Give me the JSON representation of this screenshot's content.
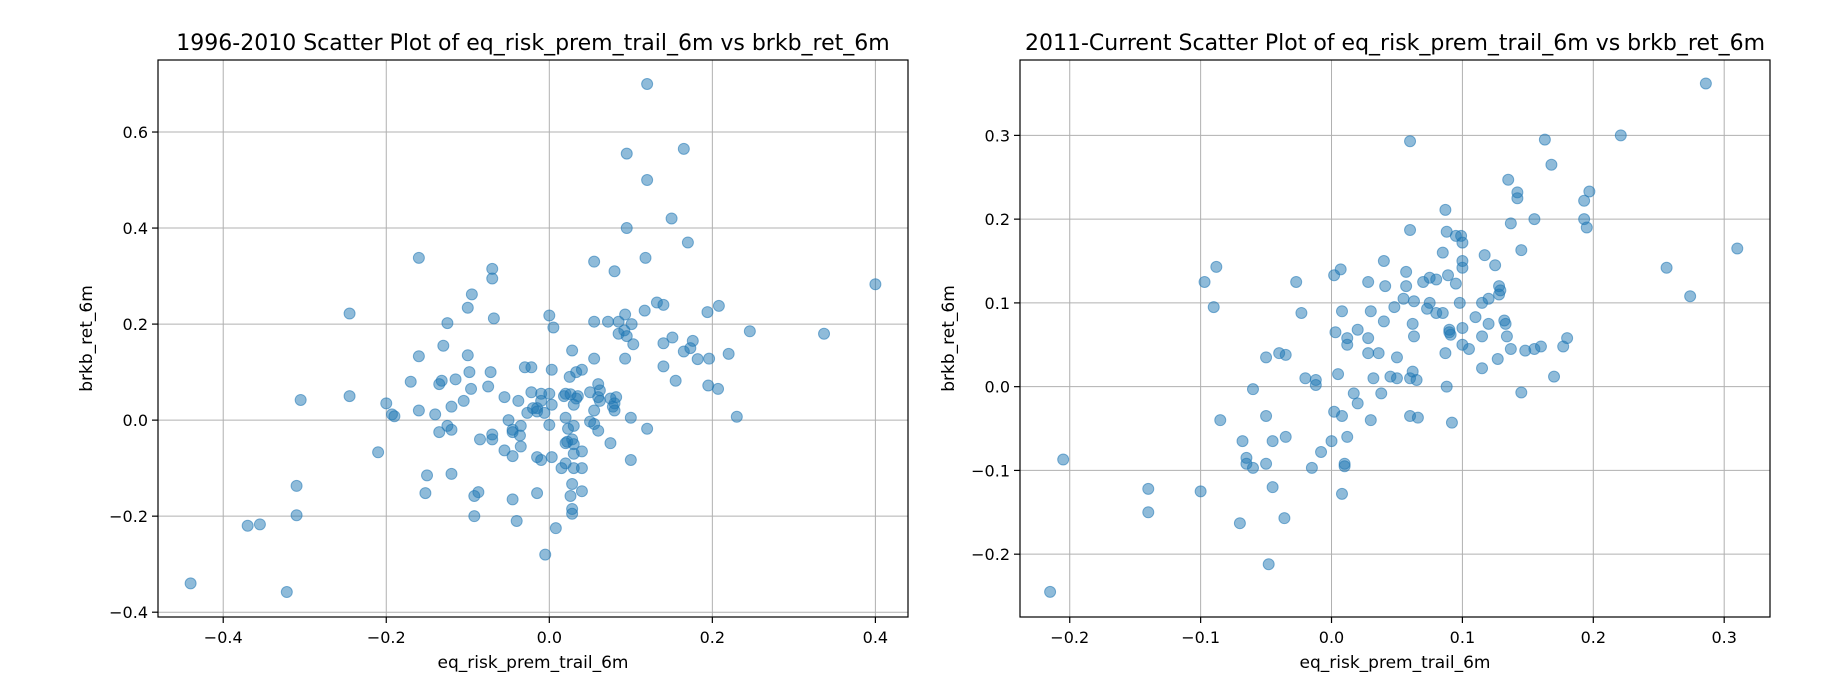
{
  "chart_data": [
    {
      "type": "scatter",
      "title": "1996-2010 Scatter Plot of eq_risk_prem_trail_6m vs brkb_ret_6m",
      "xlabel": "eq_risk_prem_trail_6m",
      "ylabel": "brkb_ret_6m",
      "xlim": [
        -0.48,
        0.44
      ],
      "ylim": [
        -0.41,
        0.75
      ],
      "xticks": [
        -0.4,
        -0.2,
        0.0,
        0.2,
        0.4
      ],
      "xtick_labels": [
        "−0.4",
        "−0.2",
        "0.0",
        "0.2",
        "0.4"
      ],
      "yticks": [
        -0.4,
        -0.2,
        0.0,
        0.2,
        0.4,
        0.6
      ],
      "ytick_labels": [
        "−0.4",
        "−0.2",
        "0.0",
        "0.2",
        "0.4",
        "0.6"
      ],
      "grid": true,
      "color": "#1f77b4",
      "points": [
        [
          0.12,
          0.7
        ],
        [
          0.165,
          0.565
        ],
        [
          0.095,
          0.555
        ],
        [
          0.12,
          0.5
        ],
        [
          0.15,
          0.42
        ],
        [
          0.095,
          0.4
        ],
        [
          0.17,
          0.37
        ],
        [
          0.055,
          0.33
        ],
        [
          0.118,
          0.338
        ],
        [
          0.08,
          0.31
        ],
        [
          -0.16,
          0.338
        ],
        [
          -0.07,
          0.315
        ],
        [
          -0.07,
          0.295
        ],
        [
          0.4,
          0.283
        ],
        [
          -0.095,
          0.262
        ],
        [
          0.132,
          0.245
        ],
        [
          0.14,
          0.24
        ],
        [
          -0.245,
          0.222
        ],
        [
          0.0,
          0.218
        ],
        [
          0.208,
          0.238
        ],
        [
          -0.1,
          0.234
        ],
        [
          0.117,
          0.228
        ],
        [
          0.194,
          0.225
        ],
        [
          0.093,
          0.22
        ],
        [
          -0.068,
          0.212
        ],
        [
          0.055,
          0.205
        ],
        [
          0.072,
          0.205
        ],
        [
          0.085,
          0.205
        ],
        [
          -0.125,
          0.202
        ],
        [
          0.101,
          0.2
        ],
        [
          0.005,
          0.193
        ],
        [
          0.092,
          0.187
        ],
        [
          0.246,
          0.185
        ],
        [
          0.337,
          0.18
        ],
        [
          0.085,
          0.18
        ],
        [
          0.095,
          0.175
        ],
        [
          0.151,
          0.172
        ],
        [
          0.176,
          0.165
        ],
        [
          0.14,
          0.16
        ],
        [
          0.103,
          0.158
        ],
        [
          0.165,
          0.143
        ],
        [
          -0.13,
          0.155
        ],
        [
          0.173,
          0.15
        ],
        [
          0.028,
          0.145
        ],
        [
          0.22,
          0.138
        ],
        [
          -0.16,
          0.133
        ],
        [
          0.196,
          0.128
        ],
        [
          0.182,
          0.127
        ],
        [
          0.093,
          0.128
        ],
        [
          0.055,
          0.128
        ],
        [
          -0.1,
          0.135
        ],
        [
          0.14,
          0.112
        ],
        [
          -0.03,
          0.11
        ],
        [
          -0.022,
          0.11
        ],
        [
          0.003,
          0.105
        ],
        [
          0.04,
          0.105
        ],
        [
          -0.098,
          0.1
        ],
        [
          0.033,
          0.1
        ],
        [
          -0.072,
          0.1
        ],
        [
          0.155,
          0.082
        ],
        [
          -0.115,
          0.085
        ],
        [
          -0.132,
          0.082
        ],
        [
          0.025,
          0.09
        ],
        [
          -0.17,
          0.08
        ],
        [
          -0.135,
          0.075
        ],
        [
          0.195,
          0.072
        ],
        [
          0.06,
          0.075
        ],
        [
          -0.075,
          0.07
        ],
        [
          0.207,
          0.065
        ],
        [
          -0.096,
          0.065
        ],
        [
          0.062,
          0.062
        ],
        [
          0.05,
          0.058
        ],
        [
          -0.022,
          0.058
        ],
        [
          -0.01,
          0.055
        ],
        [
          0.0,
          0.055
        ],
        [
          0.02,
          0.055
        ],
        [
          0.026,
          0.054
        ],
        [
          0.018,
          0.05
        ],
        [
          0.035,
          0.05
        ],
        [
          -0.245,
          0.05
        ],
        [
          -0.055,
          0.048
        ],
        [
          0.06,
          0.048
        ],
        [
          0.082,
          0.048
        ],
        [
          0.033,
          0.045
        ],
        [
          -0.01,
          0.04
        ],
        [
          0.075,
          0.045
        ],
        [
          -0.305,
          0.042
        ],
        [
          -0.105,
          0.04
        ],
        [
          -0.038,
          0.04
        ],
        [
          0.062,
          0.04
        ],
        [
          -0.2,
          0.035
        ],
        [
          0.08,
          0.035
        ],
        [
          0.003,
          0.032
        ],
        [
          0.03,
          0.032
        ],
        [
          -0.12,
          0.028
        ],
        [
          0.078,
          0.028
        ],
        [
          -0.015,
          0.025
        ],
        [
          -0.02,
          0.025
        ],
        [
          -0.16,
          0.02
        ],
        [
          0.055,
          0.02
        ],
        [
          0.08,
          0.02
        ],
        [
          -0.015,
          0.018
        ],
        [
          -0.027,
          0.015
        ],
        [
          -0.006,
          0.015
        ],
        [
          -0.193,
          0.012
        ],
        [
          -0.14,
          0.012
        ],
        [
          -0.19,
          0.008
        ],
        [
          0.23,
          0.007
        ],
        [
          0.1,
          0.005
        ],
        [
          0.02,
          0.005
        ],
        [
          -0.05,
          0.0
        ],
        [
          0.05,
          -0.003
        ],
        [
          0.055,
          -0.008
        ],
        [
          0.0,
          -0.01
        ],
        [
          -0.125,
          -0.012
        ],
        [
          -0.035,
          -0.012
        ],
        [
          0.03,
          -0.012
        ],
        [
          -0.12,
          -0.02
        ],
        [
          0.023,
          -0.018
        ],
        [
          -0.135,
          -0.025
        ],
        [
          0.12,
          -0.018
        ],
        [
          -0.045,
          -0.02
        ],
        [
          -0.045,
          -0.025
        ],
        [
          0.06,
          -0.022
        ],
        [
          -0.07,
          -0.03
        ],
        [
          -0.036,
          -0.032
        ],
        [
          -0.07,
          -0.04
        ],
        [
          0.028,
          -0.04
        ],
        [
          -0.085,
          -0.04
        ],
        [
          0.022,
          -0.045
        ],
        [
          0.075,
          -0.048
        ],
        [
          0.02,
          -0.048
        ],
        [
          0.03,
          -0.05
        ],
        [
          -0.035,
          -0.055
        ],
        [
          -0.055,
          -0.063
        ],
        [
          0.04,
          -0.065
        ],
        [
          0.03,
          -0.07
        ],
        [
          -0.21,
          -0.067
        ],
        [
          -0.045,
          -0.075
        ],
        [
          -0.015,
          -0.077
        ],
        [
          0.003,
          -0.077
        ],
        [
          0.1,
          -0.083
        ],
        [
          -0.01,
          -0.083
        ],
        [
          0.02,
          -0.09
        ],
        [
          0.04,
          -0.1
        ],
        [
          0.015,
          -0.1
        ],
        [
          0.03,
          -0.1
        ],
        [
          -0.15,
          -0.115
        ],
        [
          -0.12,
          -0.112
        ],
        [
          0.028,
          -0.133
        ],
        [
          0.04,
          -0.148
        ],
        [
          -0.015,
          -0.152
        ],
        [
          -0.087,
          -0.15
        ],
        [
          -0.152,
          -0.152
        ],
        [
          -0.092,
          -0.158
        ],
        [
          0.026,
          -0.158
        ],
        [
          -0.045,
          -0.165
        ],
        [
          -0.31,
          -0.137
        ],
        [
          0.028,
          -0.185
        ],
        [
          0.028,
          -0.195
        ],
        [
          -0.092,
          -0.2
        ],
        [
          -0.31,
          -0.198
        ],
        [
          -0.04,
          -0.21
        ],
        [
          -0.355,
          -0.217
        ],
        [
          -0.37,
          -0.22
        ],
        [
          0.008,
          -0.225
        ],
        [
          -0.005,
          -0.28
        ],
        [
          -0.44,
          -0.34
        ],
        [
          -0.322,
          -0.358
        ]
      ]
    },
    {
      "type": "scatter",
      "title": "2011-Current Scatter Plot of eq_risk_prem_trail_6m vs brkb_ret_6m",
      "xlabel": "eq_risk_prem_trail_6m",
      "ylabel": "brkb_ret_6m",
      "xlim": [
        -0.238,
        0.335
      ],
      "ylim": [
        -0.275,
        0.39
      ],
      "xticks": [
        -0.2,
        -0.1,
        0.0,
        0.1,
        0.2,
        0.3
      ],
      "xtick_labels": [
        "−0.2",
        "−0.1",
        "0.0",
        "0.1",
        "0.2",
        "0.3"
      ],
      "yticks": [
        -0.2,
        -0.1,
        0.0,
        0.1,
        0.2,
        0.3
      ],
      "ytick_labels": [
        "−0.2",
        "−0.1",
        "0.0",
        "0.1",
        "0.2",
        "0.3"
      ],
      "grid": true,
      "color": "#1f77b4",
      "points": [
        [
          0.286,
          0.362
        ],
        [
          0.06,
          0.293
        ],
        [
          0.163,
          0.295
        ],
        [
          0.221,
          0.3
        ],
        [
          0.168,
          0.265
        ],
        [
          0.135,
          0.247
        ],
        [
          0.197,
          0.233
        ],
        [
          0.142,
          0.232
        ],
        [
          0.142,
          0.225
        ],
        [
          0.193,
          0.222
        ],
        [
          0.087,
          0.211
        ],
        [
          0.099,
          0.18
        ],
        [
          0.193,
          0.2
        ],
        [
          0.155,
          0.2
        ],
        [
          0.137,
          0.195
        ],
        [
          0.195,
          0.19
        ],
        [
          0.06,
          0.187
        ],
        [
          0.088,
          0.185
        ],
        [
          0.095,
          0.18
        ],
        [
          0.1,
          0.172
        ],
        [
          0.31,
          0.165
        ],
        [
          0.145,
          0.163
        ],
        [
          0.085,
          0.16
        ],
        [
          0.117,
          0.157
        ],
        [
          0.1,
          0.15
        ],
        [
          0.04,
          0.15
        ],
        [
          0.125,
          0.145
        ],
        [
          0.256,
          0.142
        ],
        [
          -0.088,
          0.143
        ],
        [
          0.1,
          0.142
        ],
        [
          0.007,
          0.14
        ],
        [
          0.057,
          0.137
        ],
        [
          0.075,
          0.13
        ],
        [
          0.002,
          0.133
        ],
        [
          0.08,
          0.128
        ],
        [
          0.089,
          0.133
        ],
        [
          0.128,
          0.12
        ],
        [
          0.095,
          0.123
        ],
        [
          0.07,
          0.125
        ],
        [
          0.028,
          0.125
        ],
        [
          -0.027,
          0.125
        ],
        [
          -0.097,
          0.125
        ],
        [
          0.041,
          0.12
        ],
        [
          0.057,
          0.12
        ],
        [
          0.129,
          0.115
        ],
        [
          0.128,
          0.11
        ],
        [
          0.274,
          0.108
        ],
        [
          0.055,
          0.105
        ],
        [
          0.12,
          0.105
        ],
        [
          0.063,
          0.102
        ],
        [
          0.098,
          0.1
        ],
        [
          0.075,
          0.1
        ],
        [
          0.115,
          0.1
        ],
        [
          -0.09,
          0.095
        ],
        [
          0.048,
          0.095
        ],
        [
          0.073,
          0.093
        ],
        [
          0.03,
          0.09
        ],
        [
          0.008,
          0.09
        ],
        [
          -0.023,
          0.088
        ],
        [
          0.08,
          0.088
        ],
        [
          0.085,
          0.088
        ],
        [
          0.11,
          0.083
        ],
        [
          0.132,
          0.079
        ],
        [
          0.04,
          0.078
        ],
        [
          0.12,
          0.075
        ],
        [
          0.133,
          0.075
        ],
        [
          0.062,
          0.075
        ],
        [
          0.1,
          0.07
        ],
        [
          0.02,
          0.068
        ],
        [
          0.003,
          0.065
        ],
        [
          0.09,
          0.065
        ],
        [
          0.091,
          0.062
        ],
        [
          0.09,
          0.068
        ],
        [
          0.028,
          0.058
        ],
        [
          0.012,
          0.058
        ],
        [
          0.134,
          0.06
        ],
        [
          0.063,
          0.06
        ],
        [
          0.18,
          0.058
        ],
        [
          0.115,
          0.06
        ],
        [
          0.012,
          0.05
        ],
        [
          0.1,
          0.05
        ],
        [
          0.105,
          0.045
        ],
        [
          0.137,
          0.045
        ],
        [
          0.16,
          0.048
        ],
        [
          0.177,
          0.048
        ],
        [
          0.148,
          0.043
        ],
        [
          0.155,
          0.045
        ],
        [
          0.087,
          0.04
        ],
        [
          0.036,
          0.04
        ],
        [
          -0.04,
          0.04
        ],
        [
          -0.035,
          0.038
        ],
        [
          -0.05,
          0.035
        ],
        [
          0.028,
          0.04
        ],
        [
          0.05,
          0.035
        ],
        [
          0.06,
          0.01
        ],
        [
          0.062,
          0.018
        ],
        [
          0.115,
          0.022
        ],
        [
          0.127,
          0.033
        ],
        [
          0.005,
          0.015
        ],
        [
          0.032,
          0.01
        ],
        [
          -0.02,
          0.01
        ],
        [
          -0.012,
          0.008
        ],
        [
          0.045,
          0.012
        ],
        [
          0.05,
          0.01
        ],
        [
          0.065,
          0.008
        ],
        [
          0.17,
          0.012
        ],
        [
          0.088,
          0.0
        ],
        [
          -0.012,
          0.002
        ],
        [
          -0.06,
          -0.003
        ],
        [
          0.145,
          -0.007
        ],
        [
          0.017,
          -0.008
        ],
        [
          0.038,
          -0.008
        ],
        [
          0.02,
          -0.02
        ],
        [
          -0.085,
          -0.04
        ],
        [
          0.002,
          -0.03
        ],
        [
          0.008,
          -0.035
        ],
        [
          0.06,
          -0.035
        ],
        [
          0.066,
          -0.037
        ],
        [
          0.03,
          -0.04
        ],
        [
          0.092,
          -0.043
        ],
        [
          -0.05,
          -0.035
        ],
        [
          -0.035,
          -0.06
        ],
        [
          0.012,
          -0.06
        ],
        [
          -0.068,
          -0.065
        ],
        [
          -0.045,
          -0.065
        ],
        [
          0.0,
          -0.065
        ],
        [
          -0.008,
          -0.078
        ],
        [
          -0.065,
          -0.085
        ],
        [
          -0.065,
          -0.092
        ],
        [
          -0.06,
          -0.097
        ],
        [
          0.01,
          -0.095
        ],
        [
          0.01,
          -0.092
        ],
        [
          -0.015,
          -0.097
        ],
        [
          -0.05,
          -0.092
        ],
        [
          -0.205,
          -0.087
        ],
        [
          -0.045,
          -0.12
        ],
        [
          -0.14,
          -0.122
        ],
        [
          -0.1,
          -0.125
        ],
        [
          0.008,
          -0.128
        ],
        [
          -0.14,
          -0.15
        ],
        [
          -0.036,
          -0.157
        ],
        [
          -0.07,
          -0.163
        ],
        [
          -0.048,
          -0.212
        ],
        [
          -0.215,
          -0.245
        ]
      ]
    }
  ]
}
